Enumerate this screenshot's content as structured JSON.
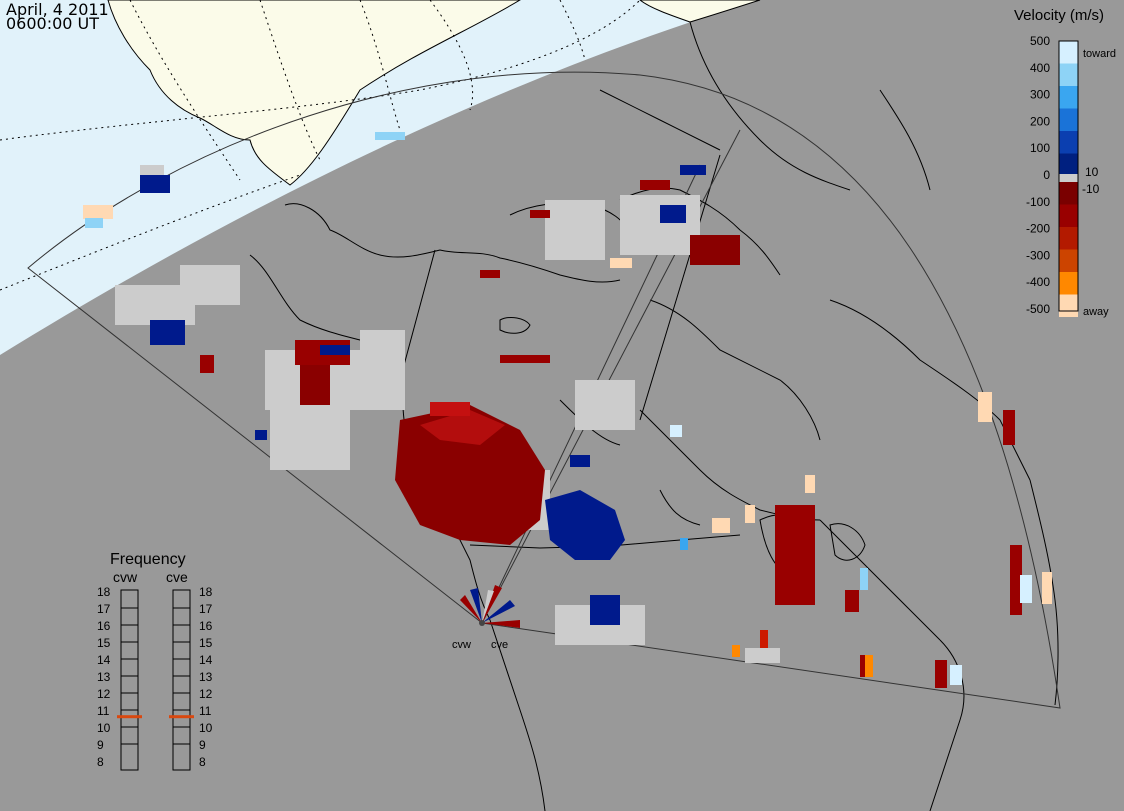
{
  "header": {
    "date": "April, 4 2011",
    "time": "0600:00 UT"
  },
  "colors": {
    "ocean": "#999999",
    "daylight": "#e1f2fa",
    "land_daylight": "#fbfbe9",
    "ground_scatter": "#cccccc",
    "toward": [
      "#d6f0ff",
      "#8ed3f6",
      "#3aa6f0",
      "#1a73d8",
      "#0b3fb0",
      "#002080"
    ],
    "away": [
      "#7a0000",
      "#990000",
      "#b31a00",
      "#cc4400",
      "#ff8800",
      "#ffd9b3"
    ],
    "freq_marker": "#d9480f"
  },
  "velocity_scale": {
    "title": "Velocity (m/s)",
    "ticks": [
      "500",
      "400",
      "300",
      "200",
      "100",
      "0",
      "-100",
      "-200",
      "-300",
      "-400",
      "-500"
    ],
    "extra_ticks": [
      "10",
      "-10"
    ],
    "toward_label": "toward",
    "away_label": "away"
  },
  "radars": {
    "cvw_label": "cvw",
    "cve_label": "cve"
  },
  "frequency_panel": {
    "title": "Frequency",
    "left_label": "cvw",
    "right_label": "cve",
    "levels": [
      "18",
      "17",
      "16",
      "15",
      "14",
      "13",
      "12",
      "11",
      "10",
      "9",
      "8"
    ],
    "cvw_value": 10.9,
    "cve_value": 10.9
  }
}
